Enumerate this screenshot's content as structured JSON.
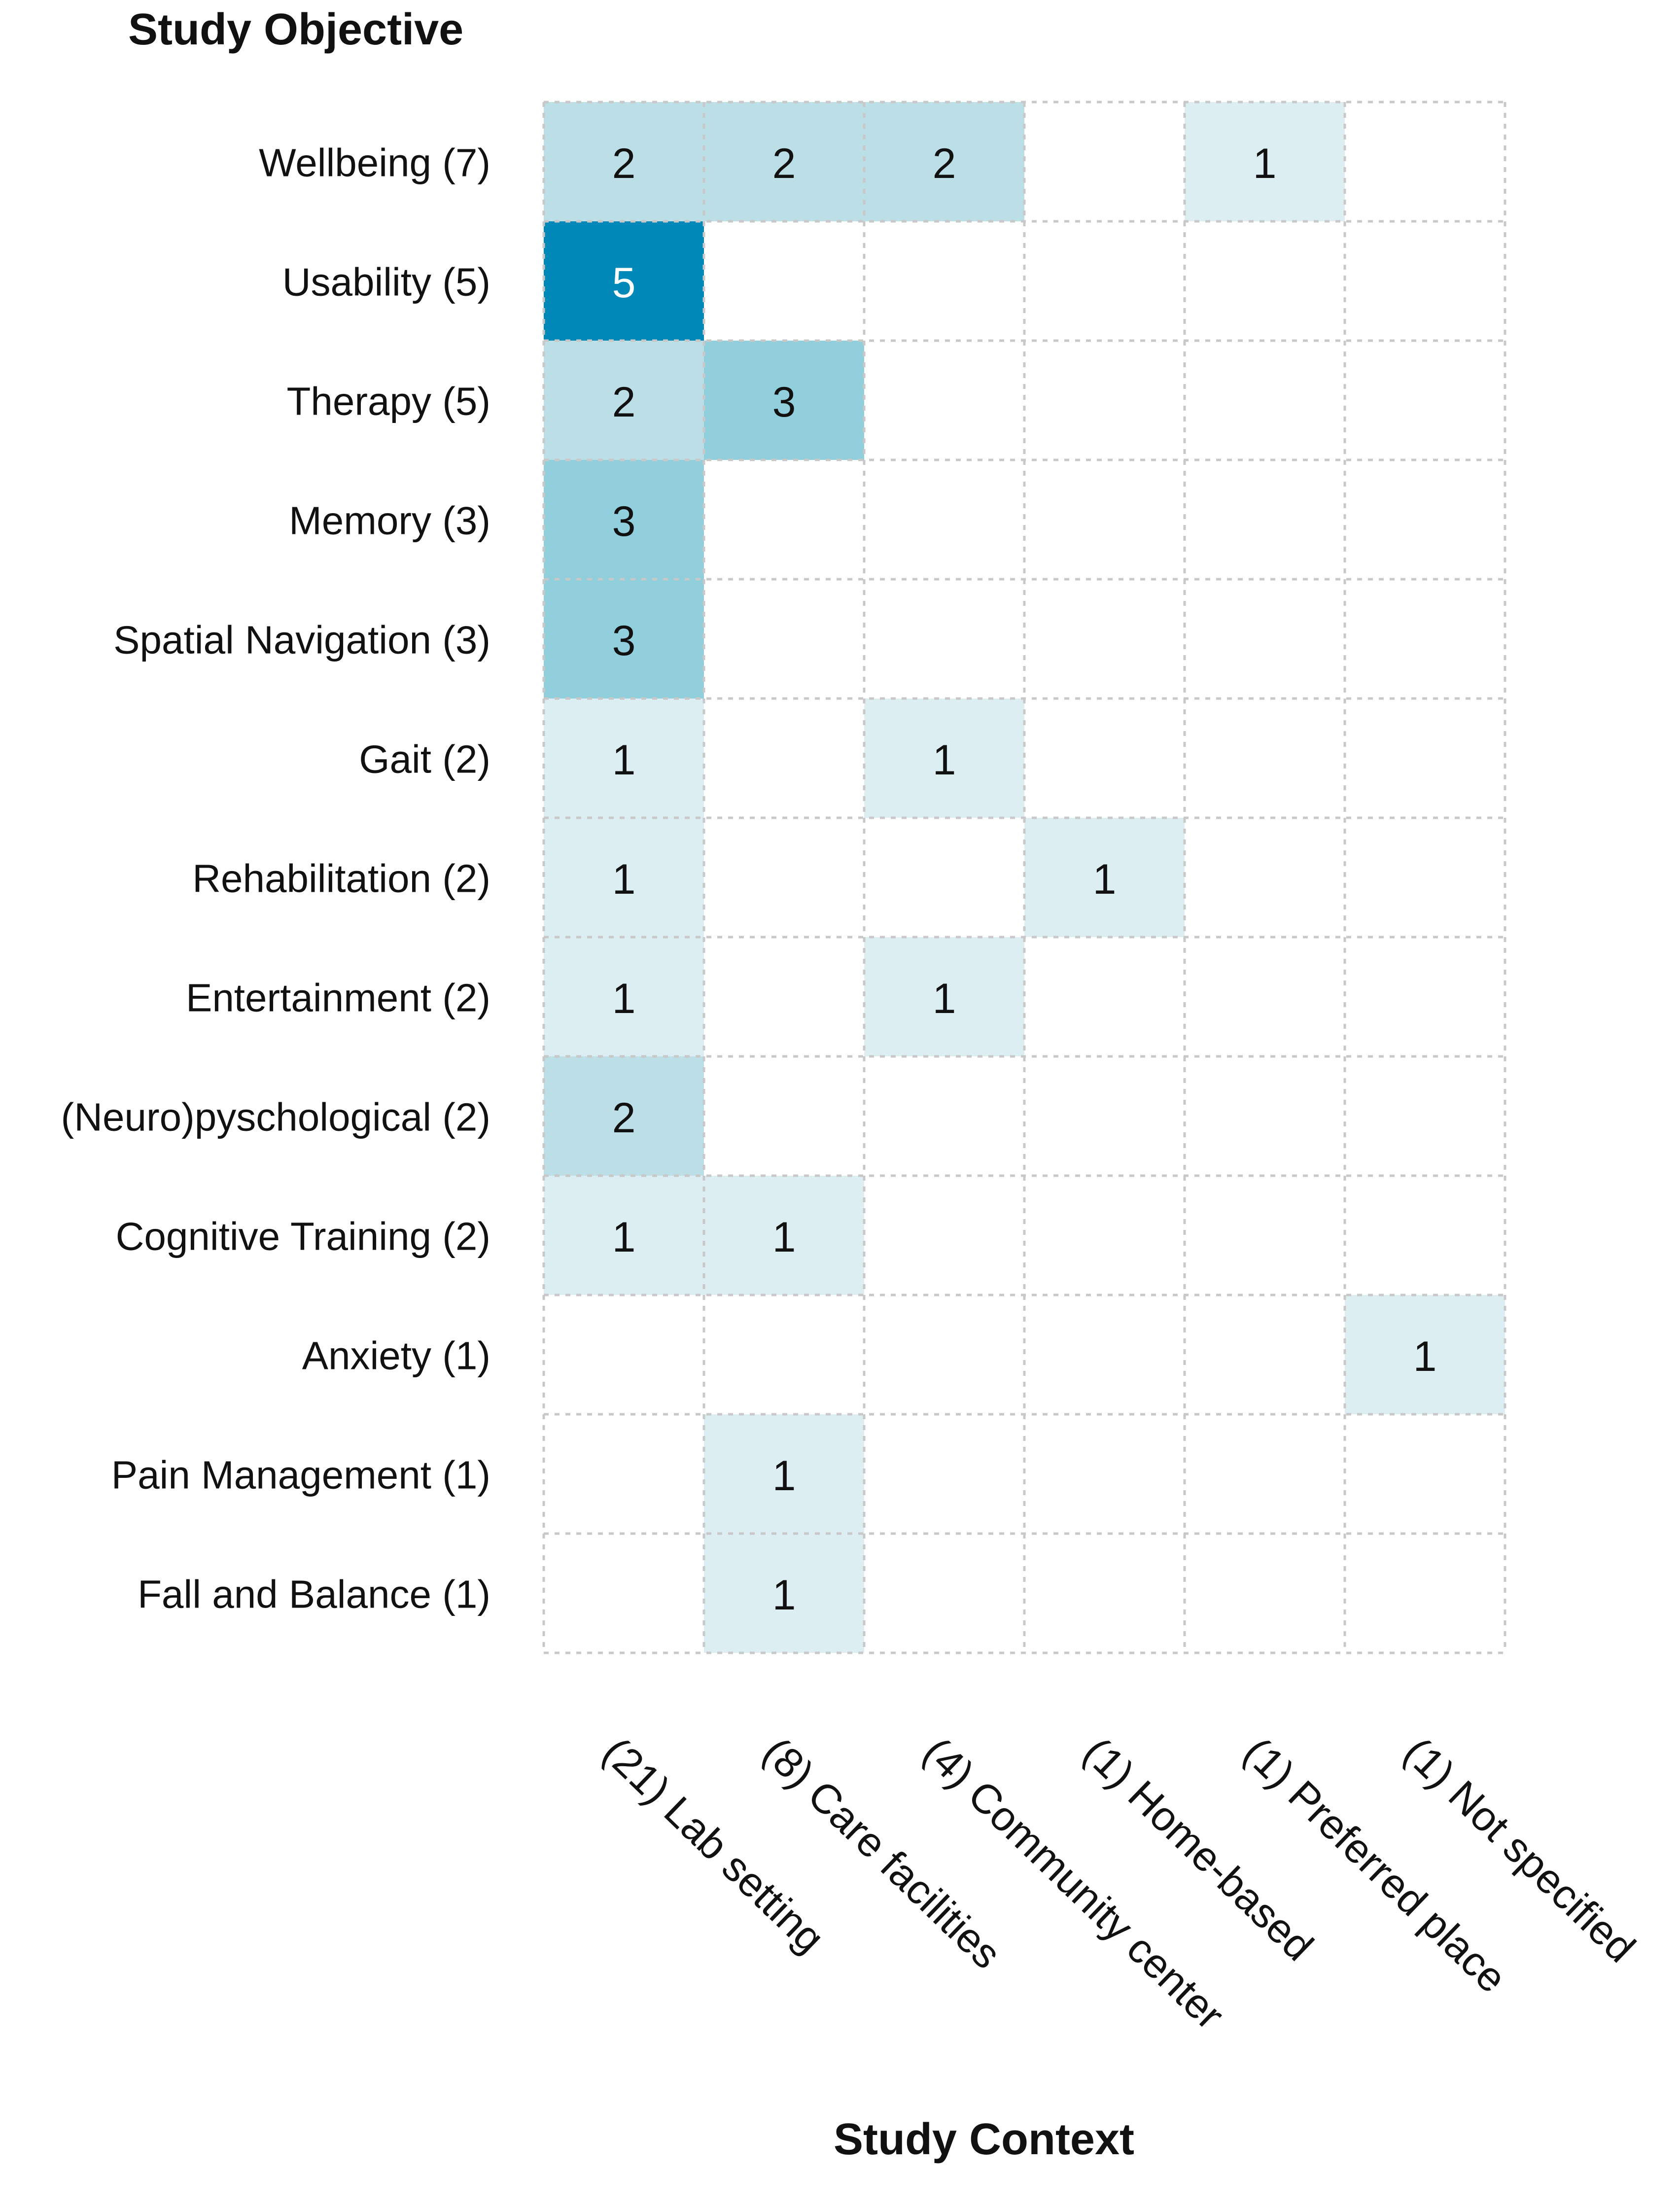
{
  "chart_data": {
    "type": "heatmap",
    "ylabel": "Study Objective",
    "xlabel": "Study Context",
    "rows": [
      "Wellbeing (7)",
      "Usability (5)",
      "Therapy (5)",
      "Memory (3)",
      "Spatial Navigation (3)",
      "Gait (2)",
      "Rehabilitation (2)",
      "Entertainment (2)",
      "(Neuro)pyschological (2)",
      "Cognitive Training (2)",
      "Anxiety (1)",
      "Pain Management (1)",
      "Fall and Balance (1)"
    ],
    "columns": [
      "(21) Lab setting",
      "(8) Care facilities",
      "(4) Community center",
      "(1) Home-based",
      "(1) Preferred place",
      "(1) Not specified"
    ],
    "values": [
      [
        2,
        2,
        2,
        null,
        1,
        null
      ],
      [
        5,
        null,
        null,
        null,
        null,
        null
      ],
      [
        2,
        3,
        null,
        null,
        null,
        null
      ],
      [
        3,
        null,
        null,
        null,
        null,
        null
      ],
      [
        3,
        null,
        null,
        null,
        null,
        null
      ],
      [
        1,
        null,
        1,
        null,
        null,
        null
      ],
      [
        1,
        null,
        null,
        1,
        null,
        null
      ],
      [
        1,
        null,
        1,
        null,
        null,
        null
      ],
      [
        2,
        null,
        null,
        null,
        null,
        null
      ],
      [
        1,
        1,
        null,
        null,
        null,
        null
      ],
      [
        null,
        null,
        null,
        null,
        null,
        1
      ],
      [
        null,
        1,
        null,
        null,
        null,
        null
      ],
      [
        null,
        1,
        null,
        null,
        null,
        null
      ]
    ],
    "color_scale": {
      "low": "#ddeef2",
      "mid": "#bcdee6",
      "high": "#90cfdb",
      "max": "#0088b8",
      "range": [
        1,
        5
      ]
    },
    "grid": true
  }
}
